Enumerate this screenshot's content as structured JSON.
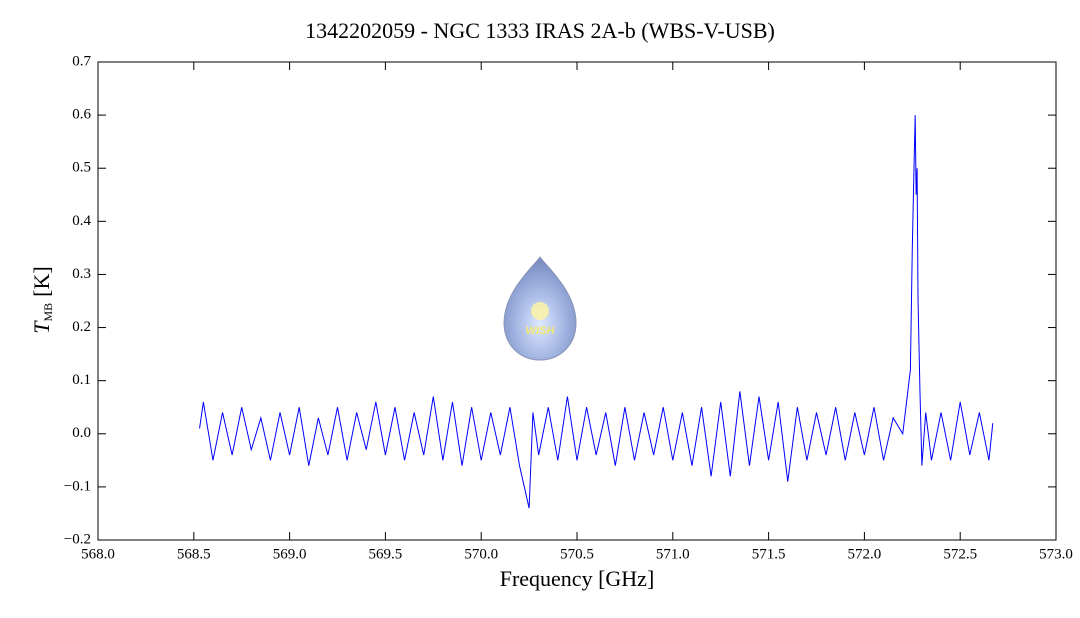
{
  "chart_data": {
    "type": "line",
    "title": "1342202059 - NGC 1333 IRAS 2A-b (WBS-V-USB)",
    "xlabel": "Frequency [GHz]",
    "ylabel": {
      "main": "T",
      "sub": "MB",
      "unit": "[K]"
    },
    "logo_text": "WISH",
    "xlim": [
      568,
      573
    ],
    "ylim": [
      -0.2,
      0.7
    ],
    "xticks": [
      {
        "value": 568,
        "label": "568.0"
      },
      {
        "value": 568.5,
        "label": "568.5"
      },
      {
        "value": 569,
        "label": "569.0"
      },
      {
        "value": 569.5,
        "label": "569.5"
      },
      {
        "value": 570,
        "label": "570.0"
      },
      {
        "value": 570.5,
        "label": "570.5"
      },
      {
        "value": 571,
        "label": "571.0"
      },
      {
        "value": 571.5,
        "label": "571.5"
      },
      {
        "value": 572,
        "label": "572.0"
      },
      {
        "value": 572.5,
        "label": "572.5"
      },
      {
        "value": 573,
        "label": "573.0"
      }
    ],
    "yticks": [
      {
        "value": -0.2,
        "label": "−0.2"
      },
      {
        "value": -0.1,
        "label": "−0.1"
      },
      {
        "value": 0,
        "label": "0.0"
      },
      {
        "value": 0.1,
        "label": "0.1"
      },
      {
        "value": 0.2,
        "label": "0.2"
      },
      {
        "value": 0.3,
        "label": "0.3"
      },
      {
        "value": 0.4,
        "label": "0.4"
      },
      {
        "value": 0.5,
        "label": "0.5"
      },
      {
        "value": 0.6,
        "label": "0.6"
      },
      {
        "value": 0.7,
        "label": "0.7"
      }
    ],
    "series": [
      {
        "color": "#0000ff",
        "x": [
          568.53,
          568.55,
          568.6,
          568.65,
          568.7,
          568.75,
          568.8,
          568.85,
          568.9,
          568.95,
          569.0,
          569.05,
          569.1,
          569.15,
          569.2,
          569.25,
          569.3,
          569.35,
          569.4,
          569.45,
          569.5,
          569.55,
          569.6,
          569.65,
          569.7,
          569.75,
          569.8,
          569.85,
          569.9,
          569.95,
          570.0,
          570.05,
          570.1,
          570.15,
          570.2,
          570.25,
          570.27,
          570.3,
          570.35,
          570.4,
          570.45,
          570.5,
          570.55,
          570.6,
          570.65,
          570.7,
          570.75,
          570.8,
          570.85,
          570.9,
          570.95,
          571.0,
          571.05,
          571.1,
          571.15,
          571.2,
          571.25,
          571.3,
          571.35,
          571.4,
          571.45,
          571.5,
          571.55,
          571.6,
          571.65,
          571.7,
          571.75,
          571.8,
          571.85,
          571.9,
          571.95,
          572.0,
          572.05,
          572.1,
          572.15,
          572.2,
          572.22,
          572.24,
          572.25,
          572.26,
          572.265,
          572.27,
          572.275,
          572.28,
          572.29,
          572.3,
          572.32,
          572.35,
          572.4,
          572.45,
          572.5,
          572.55,
          572.6,
          572.65,
          572.67
        ],
        "values": [
          0.01,
          0.06,
          -0.05,
          0.04,
          -0.04,
          0.05,
          -0.03,
          0.03,
          -0.05,
          0.04,
          -0.04,
          0.05,
          -0.06,
          0.03,
          -0.04,
          0.05,
          -0.05,
          0.04,
          -0.03,
          0.06,
          -0.04,
          0.05,
          -0.05,
          0.04,
          -0.04,
          0.07,
          -0.05,
          0.06,
          -0.06,
          0.05,
          -0.05,
          0.04,
          -0.04,
          0.05,
          -0.06,
          -0.14,
          0.04,
          -0.04,
          0.05,
          -0.05,
          0.07,
          -0.05,
          0.05,
          -0.04,
          0.04,
          -0.06,
          0.05,
          -0.05,
          0.04,
          -0.04,
          0.05,
          -0.05,
          0.04,
          -0.06,
          0.05,
          -0.08,
          0.06,
          -0.08,
          0.08,
          -0.06,
          0.07,
          -0.05,
          0.06,
          -0.09,
          0.05,
          -0.05,
          0.04,
          -0.04,
          0.05,
          -0.05,
          0.04,
          -0.04,
          0.05,
          -0.05,
          0.03,
          0.0,
          0.06,
          0.12,
          0.35,
          0.52,
          0.6,
          0.45,
          0.5,
          0.25,
          0.08,
          -0.06,
          0.04,
          -0.05,
          0.04,
          -0.05,
          0.06,
          -0.04,
          0.04,
          -0.05,
          0.02
        ]
      }
    ]
  }
}
